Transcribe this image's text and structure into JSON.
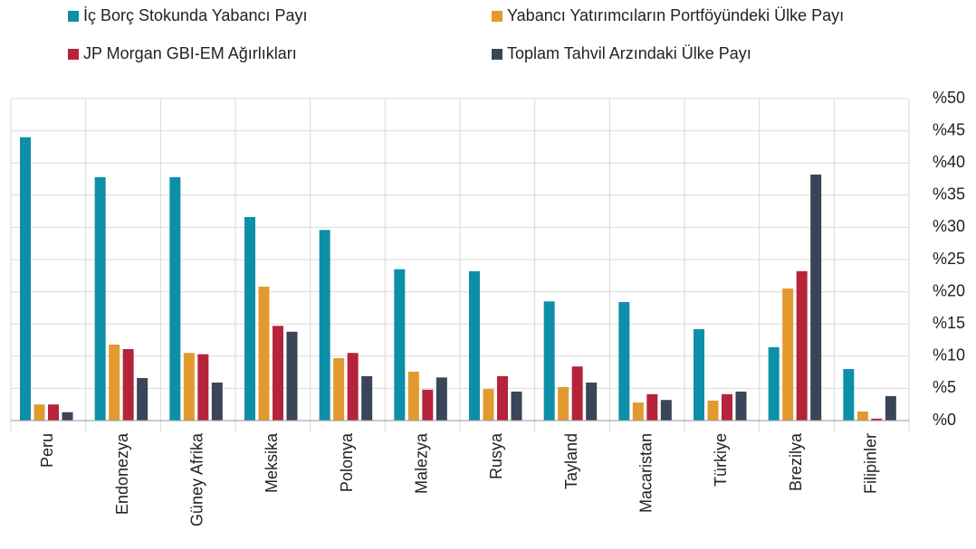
{
  "chart_data": {
    "type": "bar",
    "categories": [
      "Peru",
      "Endonezya",
      "Güney Afrika",
      "Meksika",
      "Polonya",
      "Malezya",
      "Rusya",
      "Tayland",
      "Macaristan",
      "Türkiye",
      "Brezilya",
      "Filipinler"
    ],
    "series": [
      {
        "name": "İç Borç Stokunda Yabancı Payı",
        "color": "#0e8fa8",
        "values": [
          44.0,
          37.8,
          37.8,
          31.6,
          29.6,
          23.5,
          23.2,
          18.5,
          18.4,
          14.2,
          11.4,
          8.0
        ]
      },
      {
        "name": "Yabancı Yatırımcıların Portföyündeki Ülke Payı",
        "color": "#e29a2e",
        "values": [
          2.5,
          11.8,
          10.5,
          20.8,
          9.7,
          7.6,
          4.9,
          5.2,
          2.8,
          3.1,
          20.5,
          1.4
        ]
      },
      {
        "name": "JP Morgan GBI-EM Ağırlıkları",
        "color": "#b5243a",
        "values": [
          2.5,
          11.1,
          10.3,
          14.7,
          10.5,
          4.8,
          6.9,
          8.4,
          4.1,
          4.1,
          23.2,
          0.3
        ]
      },
      {
        "name": "Toplam Tahvil Arzındaki Ülke Payı",
        "color": "#3a4558",
        "values": [
          1.3,
          6.6,
          5.9,
          13.8,
          6.9,
          6.7,
          4.5,
          5.9,
          3.2,
          4.5,
          38.2,
          3.8
        ]
      }
    ],
    "ylim": [
      0,
      50
    ],
    "yticks": [
      {
        "value": 0,
        "label": "%0"
      },
      {
        "value": 5,
        "label": "%5"
      },
      {
        "value": 10,
        "label": "%10"
      },
      {
        "value": 15,
        "label": "%15"
      },
      {
        "value": 20,
        "label": "%20"
      },
      {
        "value": 25,
        "label": "%25"
      },
      {
        "value": 30,
        "label": "%30"
      },
      {
        "value": 35,
        "label": "%35"
      },
      {
        "value": 40,
        "label": "%40"
      },
      {
        "value": 45,
        "label": "%45"
      },
      {
        "value": 50,
        "label": "%50"
      }
    ],
    "grid": true
  }
}
